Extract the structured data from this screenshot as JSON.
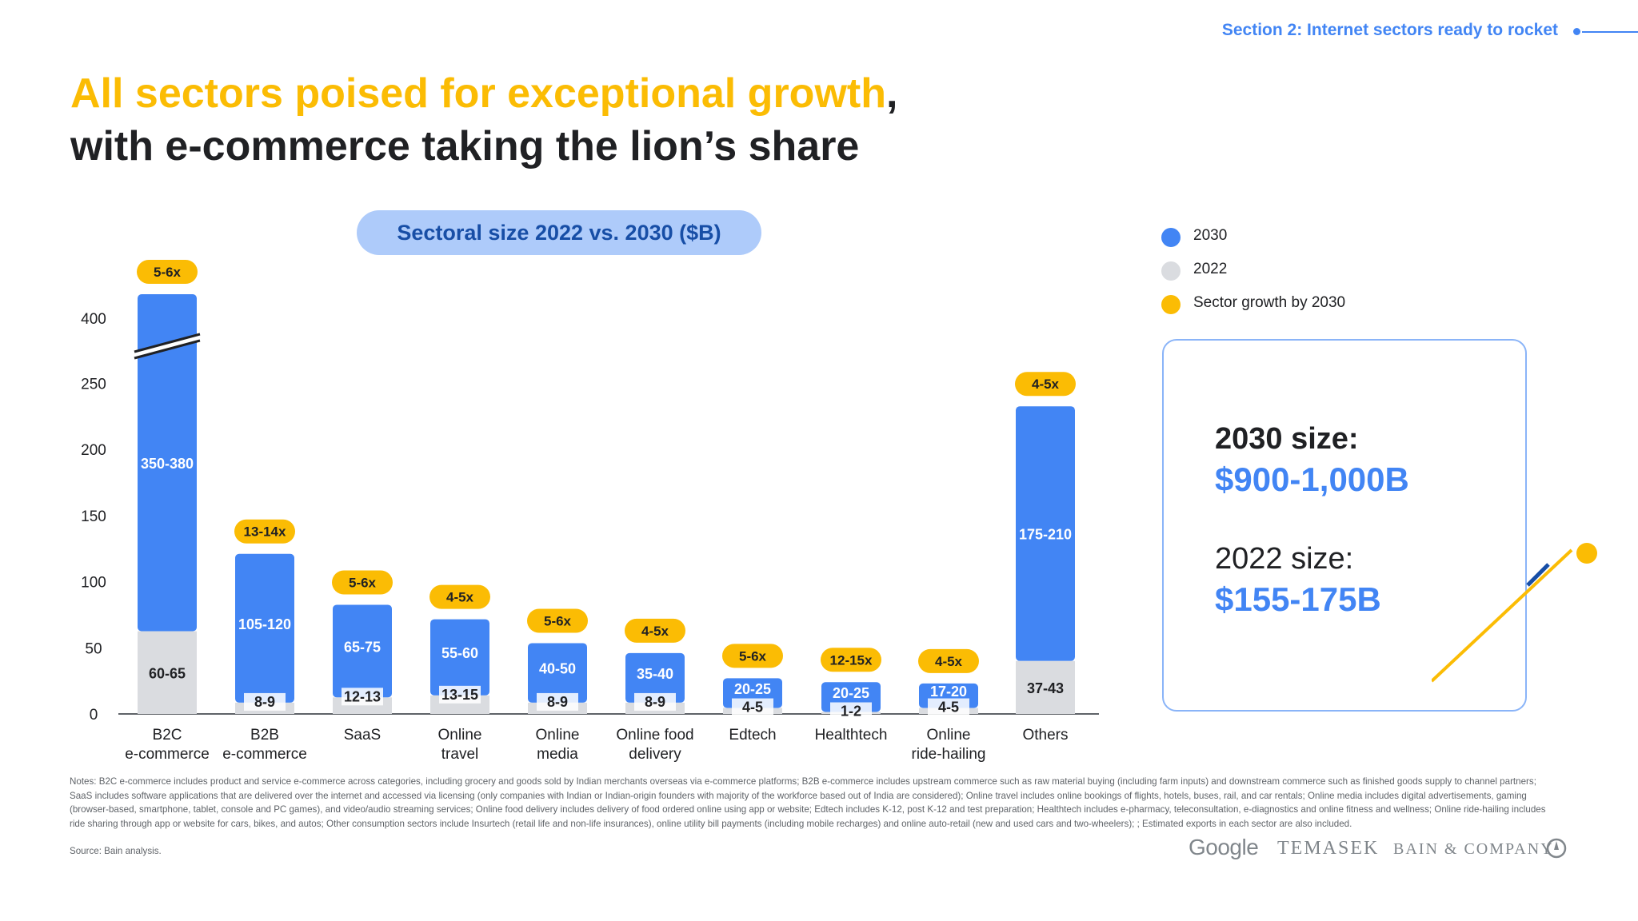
{
  "section_tag": "Section 2: Internet sectors ready to rocket",
  "title": {
    "highlight": "All sectors poised for exceptional growth",
    "comma": ",",
    "line2": "with e-commerce taking the lion’s share"
  },
  "chart_pill": "Sectoral size 2022 vs. 2030 ($B)",
  "legend": [
    {
      "label": "2030",
      "color": "#4285f4"
    },
    {
      "label": "2022",
      "color": "#dadce0"
    },
    {
      "label": "Sector growth by 2030",
      "color": "#fbbc04"
    }
  ],
  "summary": {
    "label_2030": "2030 size:",
    "value_2030": "$900-1,000B",
    "label_2022": "2022 size:",
    "value_2022": "$155-175B"
  },
  "colors": {
    "bar_2030": "#4285f4",
    "bar_2022": "#dadce0",
    "growth": "#fbbc04",
    "accent_dark": "#174ea6"
  },
  "chart_data": {
    "type": "bar",
    "stacked": true,
    "y_ticks": [
      0,
      50,
      100,
      150,
      200,
      250,
      400
    ],
    "axis_break": {
      "from": 250,
      "to": 400,
      "on_category": "B2C e-commerce"
    },
    "categories": [
      "B2C\ne-commerce",
      "B2B\ne-commerce",
      "SaaS",
      "Online\ntravel",
      "Online\nmedia",
      "Online food\ndelivery",
      "Edtech",
      "Healthtech",
      "Online\nride-hailing",
      "Others"
    ],
    "series": [
      {
        "name": "2022",
        "values": [
          62.5,
          8.5,
          12.5,
          14,
          8.5,
          8.5,
          4.5,
          1.5,
          4.5,
          40
        ],
        "labels": [
          "60-65",
          "8-9",
          "12-13",
          "13-15",
          "8-9",
          "8-9",
          "4-5",
          "1-2",
          "4-5",
          "37-43"
        ]
      },
      {
        "name": "2030",
        "values": [
          365,
          112.5,
          70,
          57.5,
          45,
          37.5,
          22.5,
          22.5,
          18.5,
          192.5
        ],
        "labels": [
          "350-380",
          "105-120",
          "65-75",
          "55-60",
          "40-50",
          "35-40",
          "20-25",
          "20-25",
          "17-20",
          "175-210"
        ]
      }
    ],
    "growth_labels": [
      "5-6x",
      "13-14x",
      "5-6x",
      "4-5x",
      "5-6x",
      "4-5x",
      "5-6x",
      "12-15x",
      "4-5x",
      "4-5x"
    ],
    "legend_position": "top-right",
    "grid": false
  },
  "notes": "Notes: B2C e-commerce includes product and service e-commerce across categories, including grocery and goods sold by Indian merchants overseas via e-commerce platforms; B2B e-commerce includes upstream commerce such as raw material buying (including farm inputs) and downstream commerce such as finished goods supply to channel partners; SaaS includes software applications that are delivered over the internet and accessed via licensing (only companies with Indian or Indian-origin founders with majority of the workforce based out of India are considered); Online travel includes online bookings of flights, hotels, buses, rail, and car rentals; Online media includes digital advertisements, gaming (browser-based, smartphone, tablet, console and PC games), and video/audio streaming services; Online food delivery includes delivery of food ordered online using app or website; Edtech includes K-12, post K-12 and test preparation; Healthtech includes e-pharmacy, teleconsultation, e-diagnostics and online fitness and wellness; Online ride-hailing includes ride sharing through app or website for cars, bikes, and autos; Other consumption sectors include Insurtech (retail life and non-life insurances), online utility bill payments (including mobile recharges) and online auto-retail (new and used cars and two-wheelers); ; Estimated exports in each sector are also included.",
  "source": "Source: Bain analysis.",
  "logos": {
    "google": "Google",
    "temasek": "TEMASEK",
    "bain": "BAIN & COMPANY"
  }
}
